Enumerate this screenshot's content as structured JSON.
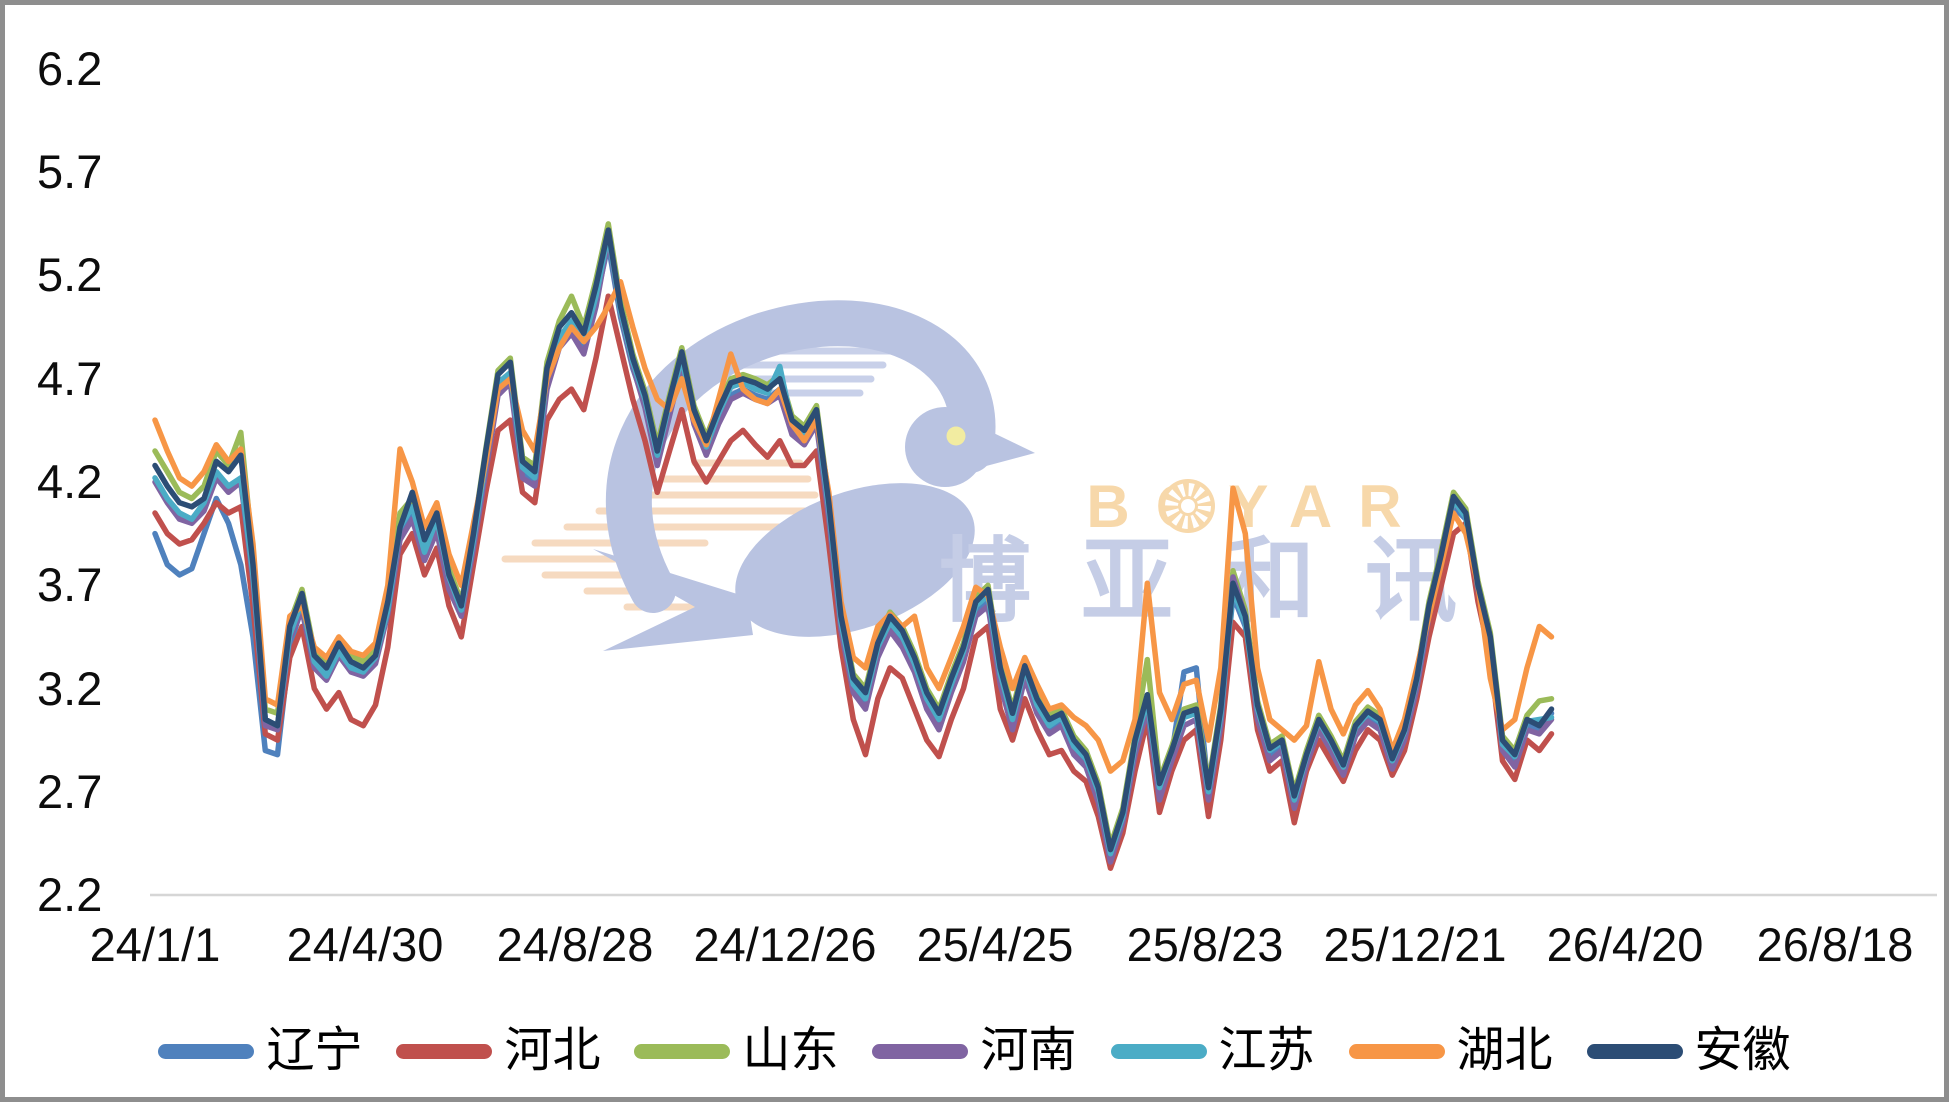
{
  "watermark": {
    "logo_text": "BOYAR",
    "cn_text": "博亚和讯"
  },
  "chart_data": {
    "type": "line",
    "title": "",
    "grid": false,
    "legend_position": "bottom",
    "sampling": "each series value is a weekly (7-day interval) observation starting at 24/1/1",
    "x_axis": {
      "start_date": "24/1/1",
      "tick_interval_days": 120,
      "span_days": 960,
      "ticks": [
        "24/1/1",
        "24/4/30",
        "24/8/28",
        "24/12/26",
        "25/4/25",
        "25/8/23",
        "25/12/21",
        "26/4/20",
        "26/8/18"
      ]
    },
    "y_axis": {
      "min": 2.2,
      "max": 6.2,
      "step": 0.5,
      "ticks": [
        "6.2",
        "5.7",
        "5.2",
        "4.7",
        "4.2",
        "3.7",
        "3.2",
        "2.7",
        "2.2"
      ]
    },
    "series": [
      {
        "id": "liaoning",
        "name": "辽宁",
        "color": "#4F81BD",
        "values": [
          3.95,
          3.8,
          3.75,
          3.78,
          3.95,
          4.12,
          4.0,
          3.8,
          3.45,
          2.9,
          2.88,
          3.4,
          3.6,
          3.32,
          3.28,
          3.4,
          3.35,
          3.32,
          3.38,
          3.58,
          3.95,
          4.05,
          3.85,
          4.0,
          3.72,
          3.58,
          3.9,
          4.28,
          4.65,
          4.7,
          4.25,
          4.2,
          4.68,
          4.88,
          4.95,
          4.85,
          5.08,
          5.35,
          5.0,
          4.75,
          4.58,
          4.3,
          4.55,
          4.78,
          4.5,
          4.35,
          4.5,
          4.62,
          4.65,
          4.62,
          4.6,
          4.65,
          4.45,
          4.4,
          4.5,
          4.05,
          3.5,
          3.2,
          3.12,
          3.38,
          3.5,
          3.42,
          3.3,
          3.12,
          3.02,
          3.2,
          3.35,
          3.58,
          3.62,
          3.25,
          3.02,
          3.28,
          3.1,
          3.0,
          3.05,
          2.9,
          2.85,
          2.68,
          2.4,
          2.58,
          2.92,
          3.12,
          2.7,
          2.88,
          3.28,
          3.3,
          2.7,
          3.05,
          3.65,
          3.5,
          3.08,
          2.88,
          2.92,
          2.65,
          2.85,
          3.02,
          2.92,
          2.8,
          3.0,
          3.06,
          3.02,
          2.83,
          2.97,
          3.22,
          3.57,
          3.82,
          4.08,
          4.02,
          3.67,
          3.42,
          2.92,
          2.85,
          3.02,
          3.0,
          3.08
        ]
      },
      {
        "id": "hebei",
        "name": "河北",
        "color": "#C0504D",
        "values": [
          4.05,
          3.95,
          3.9,
          3.92,
          4.0,
          4.1,
          4.05,
          4.08,
          3.6,
          2.98,
          2.95,
          3.35,
          3.5,
          3.2,
          3.1,
          3.18,
          3.05,
          3.02,
          3.12,
          3.4,
          3.85,
          3.95,
          3.75,
          3.88,
          3.6,
          3.45,
          3.8,
          4.15,
          4.45,
          4.5,
          4.15,
          4.1,
          4.5,
          4.6,
          4.65,
          4.55,
          4.8,
          5.1,
          4.85,
          4.6,
          4.4,
          4.15,
          4.35,
          4.55,
          4.3,
          4.2,
          4.3,
          4.4,
          4.45,
          4.38,
          4.32,
          4.4,
          4.28,
          4.28,
          4.35,
          3.9,
          3.4,
          3.05,
          2.88,
          3.15,
          3.3,
          3.25,
          3.1,
          2.95,
          2.87,
          3.05,
          3.2,
          3.45,
          3.5,
          3.1,
          2.95,
          3.15,
          3.0,
          2.88,
          2.9,
          2.8,
          2.75,
          2.58,
          2.33,
          2.5,
          2.8,
          3.05,
          2.6,
          2.8,
          2.95,
          3.0,
          2.58,
          2.95,
          3.52,
          3.45,
          3.0,
          2.8,
          2.85,
          2.55,
          2.8,
          2.95,
          2.85,
          2.75,
          2.9,
          3.0,
          2.95,
          2.78,
          2.9,
          3.15,
          3.45,
          3.7,
          3.95,
          4.0,
          3.62,
          3.35,
          2.85,
          2.76,
          2.95,
          2.9,
          2.98
        ]
      },
      {
        "id": "shandong",
        "name": "山东",
        "color": "#9BBB59",
        "values": [
          4.35,
          4.25,
          4.15,
          4.12,
          4.18,
          4.35,
          4.28,
          4.44,
          3.85,
          3.1,
          3.08,
          3.52,
          3.68,
          3.38,
          3.32,
          3.44,
          3.36,
          3.33,
          3.4,
          3.64,
          4.05,
          4.12,
          3.9,
          4.06,
          3.78,
          3.62,
          3.96,
          4.36,
          4.74,
          4.8,
          4.32,
          4.28,
          4.78,
          4.98,
          5.1,
          4.95,
          5.18,
          5.45,
          5.08,
          4.82,
          4.64,
          4.38,
          4.62,
          4.85,
          4.57,
          4.42,
          4.57,
          4.7,
          4.72,
          4.7,
          4.67,
          4.72,
          4.52,
          4.47,
          4.57,
          4.12,
          3.57,
          3.27,
          3.2,
          3.44,
          3.57,
          3.5,
          3.37,
          3.2,
          3.1,
          3.27,
          3.42,
          3.64,
          3.7,
          3.32,
          3.1,
          3.33,
          3.17,
          3.07,
          3.1,
          2.97,
          2.9,
          2.74,
          2.44,
          2.62,
          2.97,
          3.34,
          2.76,
          2.92,
          3.1,
          3.12,
          2.74,
          3.12,
          3.77,
          3.58,
          3.14,
          2.93,
          2.97,
          2.7,
          2.9,
          3.07,
          2.97,
          2.85,
          3.04,
          3.11,
          3.07,
          2.88,
          3.02,
          3.27,
          3.62,
          3.87,
          4.15,
          4.07,
          3.72,
          3.47,
          2.97,
          2.9,
          3.07,
          3.14,
          3.15
        ]
      },
      {
        "id": "henan",
        "name": "河南",
        "color": "#8064A2",
        "values": [
          4.2,
          4.1,
          4.02,
          4.0,
          4.06,
          4.22,
          4.15,
          4.2,
          3.72,
          3.02,
          3.0,
          3.44,
          3.58,
          3.3,
          3.24,
          3.36,
          3.28,
          3.26,
          3.32,
          3.56,
          3.92,
          4.02,
          3.82,
          3.96,
          3.68,
          3.55,
          3.88,
          4.25,
          4.62,
          4.68,
          4.22,
          4.18,
          4.65,
          4.85,
          4.92,
          4.82,
          5.05,
          5.38,
          5.02,
          4.76,
          4.56,
          4.28,
          4.52,
          4.76,
          4.48,
          4.33,
          4.48,
          4.6,
          4.63,
          4.6,
          4.58,
          4.62,
          4.43,
          4.38,
          4.48,
          4.02,
          3.48,
          3.18,
          3.1,
          3.35,
          3.48,
          3.4,
          3.28,
          3.1,
          3.0,
          3.18,
          3.33,
          3.55,
          3.6,
          3.22,
          3.0,
          3.25,
          3.08,
          2.98,
          3.02,
          2.88,
          2.82,
          2.65,
          2.36,
          2.55,
          2.88,
          3.1,
          2.66,
          2.85,
          3.02,
          3.05,
          2.66,
          3.02,
          3.74,
          3.55,
          3.05,
          2.85,
          2.9,
          2.62,
          2.83,
          3.0,
          2.9,
          2.78,
          2.97,
          3.04,
          3.0,
          2.81,
          2.95,
          3.2,
          3.55,
          3.8,
          4.1,
          4.04,
          3.68,
          3.44,
          2.9,
          2.82,
          3.0,
          2.98,
          3.05
        ]
      },
      {
        "id": "jiangsu",
        "name": "江苏",
        "color": "#4BACC6",
        "values": [
          4.22,
          4.12,
          4.05,
          4.02,
          4.1,
          4.25,
          4.18,
          4.22,
          3.75,
          3.05,
          3.02,
          3.46,
          3.62,
          3.33,
          3.26,
          3.38,
          3.3,
          3.28,
          3.35,
          3.58,
          3.98,
          4.08,
          3.86,
          4.02,
          3.74,
          3.58,
          3.92,
          4.3,
          4.68,
          4.73,
          4.27,
          4.22,
          4.72,
          4.9,
          4.98,
          4.88,
          5.1,
          5.4,
          5.03,
          4.78,
          4.6,
          4.33,
          4.58,
          4.8,
          4.52,
          4.37,
          4.53,
          4.66,
          4.68,
          4.65,
          4.63,
          4.76,
          4.48,
          4.42,
          4.52,
          4.07,
          3.52,
          3.22,
          3.15,
          3.4,
          3.52,
          3.45,
          3.32,
          3.15,
          3.05,
          3.22,
          3.38,
          3.6,
          3.65,
          3.27,
          3.05,
          3.3,
          3.12,
          3.02,
          3.06,
          2.92,
          2.86,
          2.7,
          2.4,
          2.58,
          2.93,
          3.14,
          2.72,
          2.9,
          3.06,
          3.08,
          2.7,
          3.07,
          3.68,
          3.52,
          3.1,
          2.9,
          2.94,
          2.66,
          2.87,
          3.04,
          2.94,
          2.82,
          3.01,
          3.08,
          3.04,
          2.85,
          2.99,
          3.24,
          3.58,
          3.84,
          4.11,
          4.03,
          3.69,
          3.44,
          2.93,
          2.87,
          3.04,
          3.05,
          3.06
        ]
      },
      {
        "id": "hubei",
        "name": "湖北",
        "color": "#F79646",
        "values": [
          4.5,
          4.35,
          4.22,
          4.18,
          4.25,
          4.38,
          4.3,
          4.36,
          3.9,
          3.15,
          3.12,
          3.55,
          3.6,
          3.4,
          3.35,
          3.45,
          3.38,
          3.36,
          3.42,
          3.7,
          4.36,
          4.2,
          3.98,
          4.1,
          3.85,
          3.7,
          4.0,
          4.3,
          4.65,
          4.7,
          4.45,
          4.35,
          4.7,
          4.85,
          4.95,
          4.88,
          4.95,
          5.05,
          5.17,
          4.95,
          4.75,
          4.6,
          4.55,
          4.7,
          4.5,
          4.38,
          4.6,
          4.82,
          4.65,
          4.6,
          4.58,
          4.65,
          4.48,
          4.4,
          4.5,
          4.15,
          3.62,
          3.35,
          3.3,
          3.5,
          3.56,
          3.5,
          3.55,
          3.3,
          3.2,
          3.35,
          3.5,
          3.69,
          3.65,
          3.4,
          3.2,
          3.35,
          3.22,
          3.1,
          3.12,
          3.06,
          3.02,
          2.95,
          2.8,
          2.85,
          3.05,
          3.71,
          3.18,
          3.05,
          3.22,
          3.24,
          2.95,
          3.3,
          4.17,
          3.95,
          3.3,
          3.05,
          3.0,
          2.95,
          3.02,
          3.33,
          3.1,
          2.98,
          3.12,
          3.19,
          3.1,
          2.9,
          3.05,
          3.3,
          3.55,
          3.8,
          4.05,
          3.95,
          3.7,
          3.25,
          3.0,
          3.05,
          3.3,
          3.5,
          3.45
        ]
      },
      {
        "id": "anhui",
        "name": "安徽",
        "color": "#2C4D75",
        "values": [
          4.28,
          4.18,
          4.1,
          4.08,
          4.12,
          4.3,
          4.25,
          4.33,
          3.8,
          3.05,
          3.02,
          3.5,
          3.66,
          3.36,
          3.3,
          3.42,
          3.33,
          3.3,
          3.36,
          3.62,
          3.98,
          4.15,
          3.92,
          4.05,
          3.75,
          3.6,
          3.95,
          4.35,
          4.72,
          4.78,
          4.3,
          4.25,
          4.75,
          4.95,
          5.02,
          4.92,
          5.15,
          5.42,
          5.05,
          4.8,
          4.62,
          4.35,
          4.6,
          4.83,
          4.55,
          4.4,
          4.55,
          4.68,
          4.7,
          4.68,
          4.65,
          4.7,
          4.5,
          4.45,
          4.55,
          4.1,
          3.55,
          3.25,
          3.18,
          3.42,
          3.55,
          3.48,
          3.35,
          3.18,
          3.08,
          3.25,
          3.4,
          3.62,
          3.68,
          3.3,
          3.08,
          3.31,
          3.15,
          3.05,
          3.08,
          2.95,
          2.88,
          2.72,
          2.42,
          2.6,
          2.95,
          3.17,
          2.74,
          2.9,
          3.08,
          3.1,
          2.72,
          3.1,
          3.71,
          3.55,
          3.12,
          2.91,
          2.95,
          2.68,
          2.88,
          3.05,
          2.95,
          2.83,
          3.02,
          3.09,
          3.05,
          2.86,
          3.0,
          3.25,
          3.6,
          3.85,
          4.13,
          4.05,
          3.7,
          3.45,
          2.95,
          2.88,
          3.05,
          3.02,
          3.1
        ]
      }
    ]
  }
}
